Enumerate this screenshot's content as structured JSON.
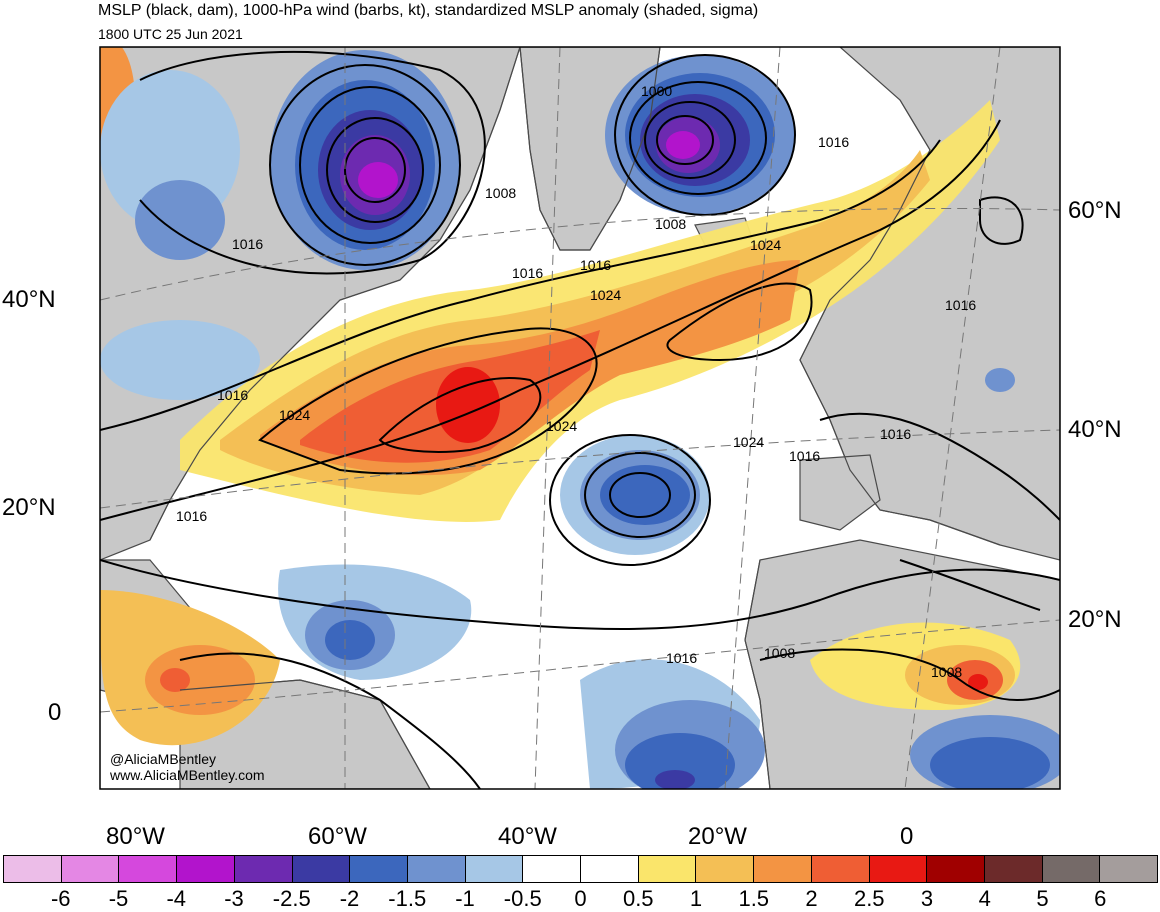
{
  "header": {
    "title": "MSLP (black, dam), 1000-hPa wind (barbs, kt), standardized MSLP anomaly (shaded, sigma)",
    "valid_time": "1800 UTC 25 Jun 2021"
  },
  "map": {
    "lat_labels_left": [
      "40°N",
      "20°N",
      "0"
    ],
    "lat_labels_right": [
      "60°N",
      "40°N",
      "20°N"
    ],
    "lon_labels": [
      "80°W",
      "60°W",
      "40°W",
      "20°W",
      "0"
    ],
    "isobar_labels": [
      "1000",
      "1016",
      "1008",
      "1024",
      "1016",
      "1024",
      "1008",
      "1016",
      "1016",
      "1024",
      "1024",
      "1016",
      "1016",
      "1016",
      "1016",
      "1024",
      "1016",
      "1008",
      "1008",
      "1016"
    ],
    "credit_handle": "@AliciaMBentley",
    "credit_url": "www.AliciaMBentley.com",
    "colors": {
      "land": "#c8c8c8",
      "coastline": "#4a4a4a",
      "isobar": "#000000"
    }
  },
  "colorbar": {
    "labels": [
      "-6",
      "-5",
      "-4",
      "-3",
      "-2.5",
      "-2",
      "-1.5",
      "-1",
      "-0.5",
      "0",
      "0.5",
      "1",
      "1.5",
      "2",
      "2.5",
      "3",
      "4",
      "5",
      "6"
    ],
    "colors": [
      "#ecbde8",
      "#e487e4",
      "#d548dd",
      "#b214cc",
      "#6d2ab0",
      "#3b3aa3",
      "#3c67bd",
      "#6f92cf",
      "#a6c7e6",
      "#ffffff",
      "#ffffff",
      "#fae56b",
      "#f4bf55",
      "#f39443",
      "#ef5e34",
      "#e81913",
      "#a00000",
      "#6c2a2a",
      "#756a68",
      "#a49d9c"
    ]
  }
}
